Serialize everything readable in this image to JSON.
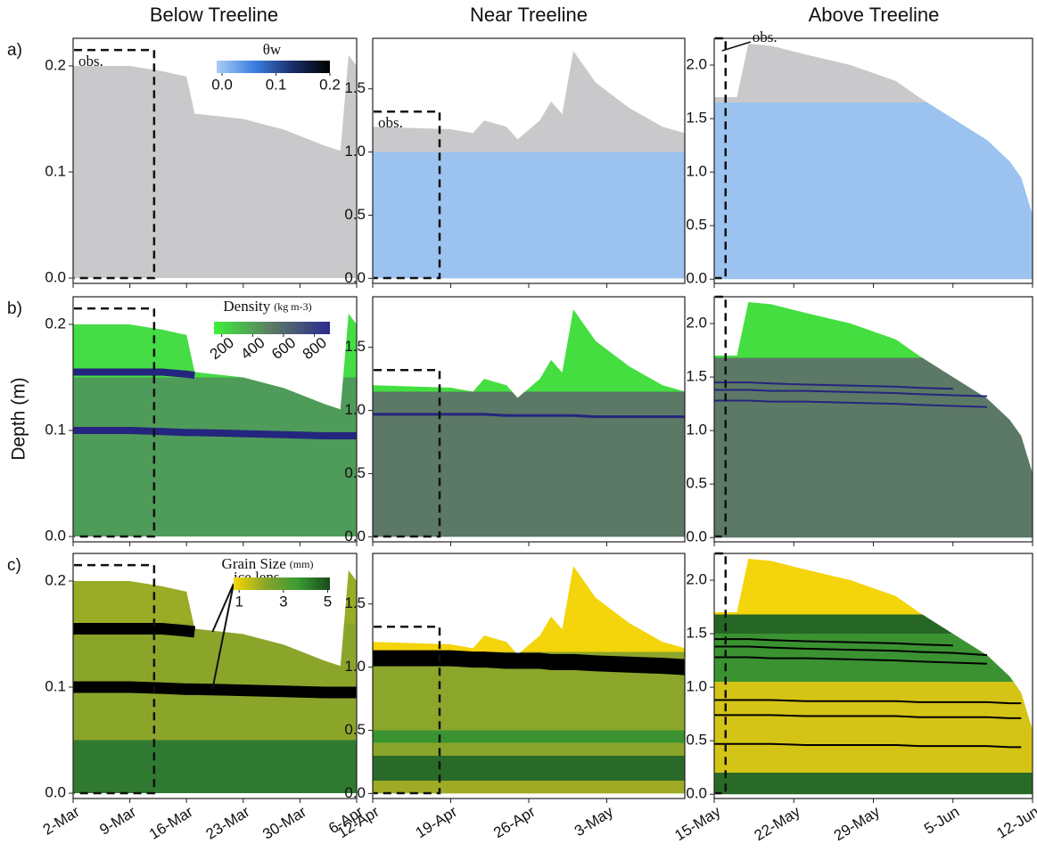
{
  "chart_data": {
    "type": "area",
    "ylabel": "Depth (m)",
    "columns": [
      {
        "title": "Below Treeline",
        "xlim": [
          "2-Mar",
          "6-Apr"
        ],
        "xticks": [
          "2-Mar",
          "9-Mar",
          "16-Mar",
          "23-Mar",
          "30-Mar",
          "6-Apr"
        ],
        "ylim": [
          -0.005,
          0.226
        ],
        "yticks": [
          {
            "value": 0,
            "label": "0.0"
          },
          {
            "value": 0.1,
            "label": "0.1"
          },
          {
            "value": 0.2,
            "label": "0.2"
          }
        ],
        "obs": {
          "end": "12-Mar",
          "top": 0.215
        },
        "obs_label": "obs.",
        "x": [
          "2-Mar",
          "9-Mar",
          "13-Mar",
          "16-Mar",
          "17-Mar",
          "23-Mar",
          "28-Mar",
          "2-Apr",
          "4-Apr",
          "5-Apr",
          "6-Apr"
        ],
        "surface": [
          0.2,
          0.2,
          0.195,
          0.19,
          0.155,
          0.15,
          0.14,
          0.125,
          0.12,
          0.21,
          0.2
        ],
        "panels": [
          {
            "label": "a)",
            "stops": [
              [
                0,
                "#c9c9cb"
              ]
            ],
            "lenses": [],
            "colorbar": {
              "title": "θw",
              "colors": [
                "#a9cdf6",
                "#3b7fe0",
                "#1a2f6a",
                "#000000"
              ],
              "clim": [
                -0.01,
                0.2
              ],
              "ticks": [
                {
                  "value": 0,
                  "label": "0.0"
                },
                {
                  "value": 0.1,
                  "label": "0.1"
                },
                {
                  "value": 0.2,
                  "label": "0.2"
                }
              ]
            }
          },
          {
            "label": "b)",
            "stops": [
              [
                0,
                "#4f9b59"
              ],
              [
                0.15,
                "#45dc45"
              ]
            ],
            "lens_color": "#24257e",
            "lenses": [
              [
                0.155,
                0.155,
                0.155,
                0.153,
                0.152,
                null,
                null,
                null,
                null,
                null,
                null
              ],
              [
                0.1,
                0.1,
                0.099,
                0.098,
                0.098,
                0.097,
                0.096,
                0.095,
                0.095,
                0.095,
                0.095
              ]
            ],
            "colorbar": {
              "title": "Density",
              "unit": "(kg m-3)",
              "colors": [
                "#3ef03a",
                "#5c7a64",
                "#2a2c8e"
              ],
              "clim": [
                150,
                900
              ],
              "ticks": [
                200,
                400,
                600,
                800
              ]
            }
          },
          {
            "label": "c)",
            "stops": [
              [
                0,
                "#2f7a30"
              ],
              [
                0.05,
                "#8ba52b"
              ],
              [
                0.16,
                "#9aab26"
              ]
            ],
            "lens_color": "#000000",
            "lenses": [
              [
                0.155,
                0.155,
                0.155,
                0.153,
                0.152,
                null,
                null,
                null,
                null,
                null,
                null
              ],
              [
                0.1,
                0.1,
                0.099,
                0.098,
                0.098,
                0.097,
                0.096,
                0.095,
                0.095,
                0.095,
                0.095
              ]
            ],
            "annotation": "ice lens",
            "colorbar": {
              "title": "Grain Size",
              "unit": "(mm)",
              "colors": [
                "#f7d700",
                "#8aa52a",
                "#3a9b34",
                "#1c4a1c"
              ],
              "clim": [
                0.75,
                5.1
              ],
              "ticks": [
                1,
                3,
                5
              ]
            }
          }
        ]
      },
      {
        "title": "Near Treeline",
        "xlim": [
          "12-Apr",
          "10-May"
        ],
        "xticks": [
          "12-Apr",
          "19-Apr",
          "26-Apr",
          "3-May"
        ],
        "ylim": [
          -0.04,
          1.9
        ],
        "yticks": [
          {
            "value": 0,
            "label": "0.0"
          },
          0.5,
          {
            "value": 1,
            "label": "1.0"
          },
          1.5
        ],
        "obs": {
          "end": "18-Apr",
          "top": 1.32
        },
        "obs_label": "obs.",
        "x": [
          "12-Apr",
          "19-Apr",
          "21-Apr",
          "22-Apr",
          "24-Apr",
          "25-Apr",
          "27-Apr",
          "28-Apr",
          "29-Apr",
          "30-Apr",
          "2-May",
          "5-May",
          "8-May",
          "10-May"
        ],
        "surface": [
          1.2,
          1.18,
          1.15,
          1.25,
          1.2,
          1.1,
          1.25,
          1.4,
          1.3,
          1.8,
          1.55,
          1.35,
          1.2,
          1.15
        ],
        "panels": [
          {
            "label": "a)",
            "stops": [
              [
                0,
                "#9cc3ef"
              ],
              [
                1.0,
                "#c9c9cb"
              ]
            ],
            "lenses": []
          },
          {
            "label": "b)",
            "stops": [
              [
                0,
                "#5c7866"
              ],
              [
                1.15,
                "#44de40"
              ]
            ],
            "lens_color": "#24257e",
            "lenses": [
              [
                0.97,
                0.97,
                0.97,
                0.97,
                0.96,
                0.96,
                0.96,
                0.96,
                0.96,
                0.96,
                0.95,
                0.95,
                0.95,
                0.95
              ]
            ]
          },
          {
            "label": "c)",
            "stops": [
              [
                0,
                "#a0ab25"
              ],
              [
                0.1,
                "#2a6a28"
              ],
              [
                0.3,
                "#8aa52b"
              ],
              [
                0.4,
                "#3a9330"
              ],
              [
                0.5,
                "#8ca62b"
              ],
              [
                1.12,
                "#f4d40a"
              ]
            ],
            "lens_color": "#000000",
            "lenses": [
              [
                1.07,
                1.07,
                1.06,
                1.06,
                1.05,
                1.05,
                1.05,
                1.04,
                1.04,
                1.04,
                1.03,
                1.02,
                1.01,
                1.0
              ]
            ]
          }
        ]
      },
      {
        "title": "Above Treeline",
        "xlim": [
          "15-May",
          "12-Jun"
        ],
        "xticks": [
          "15-May",
          "22-May",
          "29-May",
          "5-Jun",
          "12-Jun"
        ],
        "ylim": [
          -0.04,
          2.25
        ],
        "yticks": [
          {
            "value": 0,
            "label": "0.0"
          },
          0.5,
          {
            "value": 1,
            "label": "1.0"
          },
          1.5,
          {
            "value": 2,
            "label": "2.0"
          }
        ],
        "obs": {
          "end": "16-May",
          "top": 2.25
        },
        "obs_label": "obs.",
        "x": [
          "15-May",
          "17-May",
          "18-May",
          "20-May",
          "23-May",
          "27-May",
          "31-May",
          "2-Jun",
          "5-Jun",
          "8-Jun",
          "10-Jun",
          "11-Jun",
          "12-Jun"
        ],
        "surface": [
          1.7,
          1.7,
          2.2,
          2.18,
          2.1,
          2.0,
          1.85,
          1.7,
          1.5,
          1.3,
          1.1,
          0.95,
          0.6
        ],
        "panels": [
          {
            "label": "a)",
            "stops": [
              [
                0,
                "#9cc3ef"
              ],
              [
                1.65,
                "#c9c9cb"
              ]
            ],
            "lenses": []
          },
          {
            "label": "b)",
            "stops": [
              [
                0,
                "#5c7866"
              ],
              [
                1.68,
                "#44de40"
              ]
            ],
            "lens_color": "#24257e",
            "lenses": [
              [
                1.45,
                1.45,
                1.45,
                1.44,
                1.43,
                1.42,
                1.41,
                1.4,
                1.39,
                null,
                null,
                null,
                null
              ],
              [
                1.38,
                1.38,
                1.38,
                1.37,
                1.37,
                1.36,
                1.35,
                1.34,
                1.33,
                1.32,
                null,
                null,
                null
              ],
              [
                1.28,
                1.28,
                1.28,
                1.27,
                1.27,
                1.26,
                1.25,
                1.24,
                1.23,
                1.22,
                null,
                null,
                null
              ]
            ]
          },
          {
            "label": "c)",
            "stops": [
              [
                0,
                "#2a6a28"
              ],
              [
                0.2,
                "#d4c416"
              ],
              [
                1.05,
                "#3a9330"
              ],
              [
                1.5,
                "#256625"
              ],
              [
                1.68,
                "#f4d40a"
              ]
            ],
            "lens_color": "#000000",
            "lenses": [
              [
                1.45,
                1.45,
                1.45,
                1.44,
                1.43,
                1.42,
                1.41,
                1.4,
                1.39,
                null,
                null,
                null,
                null
              ],
              [
                1.38,
                1.38,
                1.38,
                1.37,
                1.36,
                1.35,
                1.34,
                1.33,
                1.32,
                1.3,
                null,
                null,
                null
              ],
              [
                1.28,
                1.28,
                1.28,
                1.27,
                1.27,
                1.26,
                1.25,
                1.24,
                1.23,
                1.22,
                null,
                null,
                null
              ],
              [
                0.88,
                0.88,
                0.88,
                0.88,
                0.87,
                0.87,
                0.87,
                0.86,
                0.86,
                0.86,
                0.85,
                0.85,
                null
              ],
              [
                0.74,
                0.74,
                0.74,
                0.74,
                0.73,
                0.73,
                0.73,
                0.72,
                0.72,
                0.72,
                0.71,
                0.71,
                null
              ],
              [
                0.47,
                0.47,
                0.47,
                0.47,
                0.46,
                0.46,
                0.46,
                0.45,
                0.45,
                0.45,
                0.44,
                0.44,
                null
              ]
            ]
          }
        ]
      }
    ]
  }
}
